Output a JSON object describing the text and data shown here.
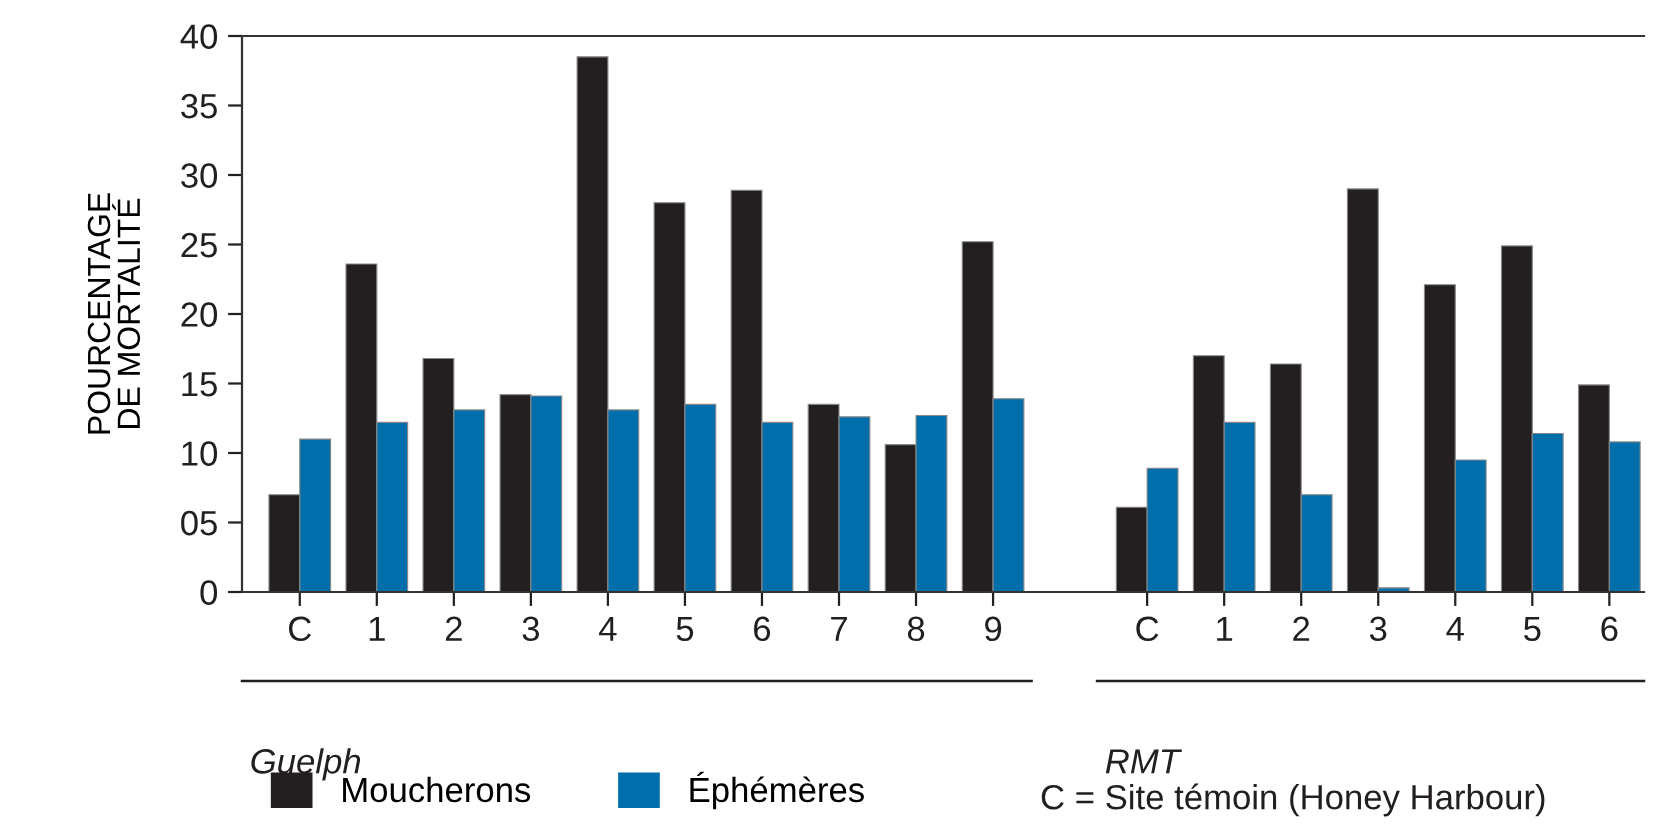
{
  "chart_data": {
    "type": "bar",
    "categories": [
      "C",
      "1",
      "2",
      "3",
      "4",
      "5",
      "6",
      "7",
      "8",
      "9",
      null,
      "C",
      "1",
      "2",
      "3",
      "4",
      "5",
      "6"
    ],
    "series": [
      {
        "name": "Moucherons",
        "color": "#231f20",
        "values": [
          7.0,
          23.6,
          16.8,
          14.2,
          38.5,
          28.0,
          28.9,
          13.5,
          10.6,
          25.2,
          null,
          6.1,
          17.0,
          16.4,
          29.0,
          22.1,
          24.9,
          14.9
        ]
      },
      {
        "name": "Éphémères",
        "color": "#006eaa",
        "values": [
          11.0,
          12.2,
          13.1,
          14.1,
          13.1,
          13.5,
          12.2,
          12.6,
          12.7,
          13.9,
          null,
          8.9,
          12.2,
          7.0,
          0.3,
          9.5,
          11.4,
          10.8
        ]
      }
    ],
    "ylabel": "POURCENTAGE\nDE MORTALITÉ",
    "ylim": [
      0,
      40
    ],
    "yticks": [
      0,
      {
        "value": 5,
        "label": "05"
      },
      10,
      15,
      20,
      25,
      30,
      35,
      40
    ],
    "annotations": [
      "Guelph",
      "RMT",
      "C = Site témoin (Honey Harbour)"
    ],
    "legend": "bottom",
    "grid": false
  }
}
